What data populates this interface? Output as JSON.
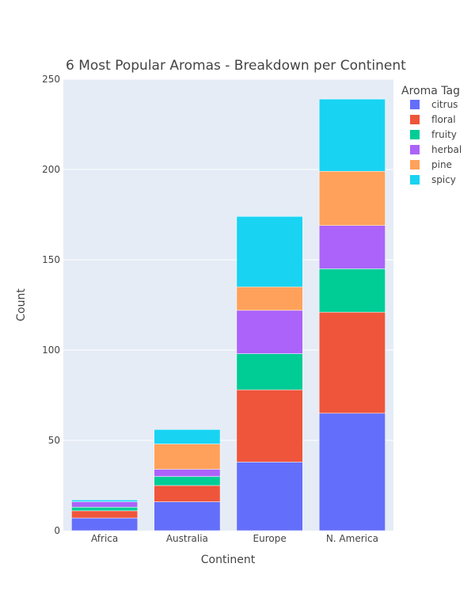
{
  "chart_data": {
    "type": "bar",
    "stacked": true,
    "title": "6 Most Popular Aromas - Breakdown per Continent",
    "xlabel": "Continent",
    "ylabel": "Count",
    "ylim": [
      0,
      250
    ],
    "yticks": [
      0,
      50,
      100,
      150,
      200,
      250
    ],
    "categories": [
      "Africa",
      "Australia",
      "Europe",
      "N. America"
    ],
    "legend_title": "Aroma Tag",
    "legend_position": "top-right",
    "grid": true,
    "series": [
      {
        "name": "citrus",
        "color": "#636efa",
        "values": [
          7,
          16,
          38,
          65
        ]
      },
      {
        "name": "floral",
        "color": "#ef553b",
        "values": [
          4,
          9,
          40,
          56
        ]
      },
      {
        "name": "fruity",
        "color": "#00cc96",
        "values": [
          2,
          5,
          20,
          24
        ]
      },
      {
        "name": "herbal",
        "color": "#ab63fa",
        "values": [
          3,
          4,
          24,
          24
        ]
      },
      {
        "name": "pine",
        "color": "#ffa15a",
        "values": [
          0,
          14,
          13,
          30
        ]
      },
      {
        "name": "spicy",
        "color": "#19d3f3",
        "values": [
          1,
          8,
          39,
          40
        ]
      }
    ]
  }
}
